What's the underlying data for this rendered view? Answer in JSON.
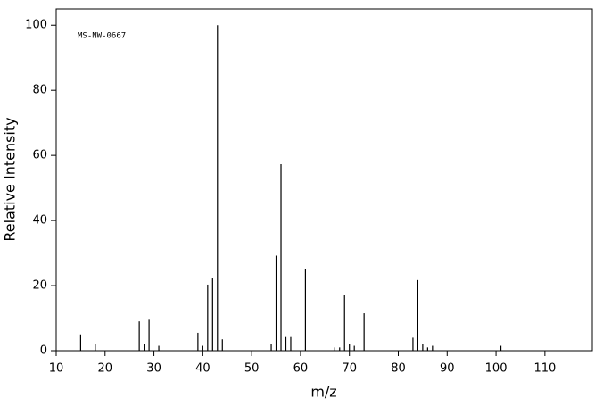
{
  "chart_data": {
    "type": "stem",
    "annotation": "MS-NW-0667",
    "xlabel": "m/z",
    "ylabel": "Relative Intensity",
    "x": [
      15,
      18,
      27,
      28,
      29,
      31,
      39,
      40,
      41,
      42,
      43,
      44,
      54,
      55,
      56,
      57,
      58,
      61,
      67,
      68,
      69,
      70,
      71,
      73,
      83,
      84,
      85,
      86,
      87,
      101
    ],
    "values": [
      5,
      2,
      9,
      2,
      9.5,
      1.5,
      5.5,
      1.5,
      20.3,
      22.2,
      100,
      3.5,
      2,
      29.2,
      57.3,
      4.2,
      4.2,
      25,
      1,
      1,
      17,
      2,
      1.5,
      11.5,
      4,
      21.7,
      2,
      1,
      1.5,
      1.5
    ],
    "color": "#000000",
    "xlim": [
      10,
      119.7
    ],
    "ylim": [
      0,
      105
    ],
    "xticks": [
      10,
      20,
      30,
      40,
      50,
      60,
      70,
      80,
      90,
      100,
      110
    ],
    "yticks": [
      0,
      20,
      40,
      60,
      80,
      100
    ]
  }
}
